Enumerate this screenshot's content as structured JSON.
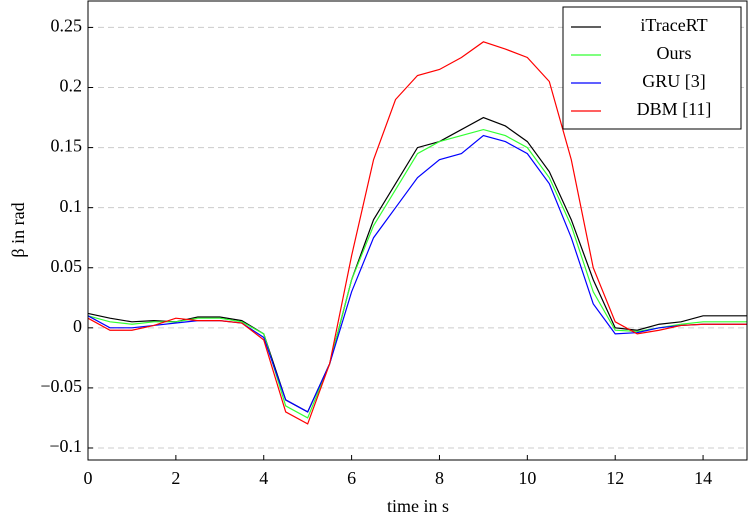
{
  "chart_data": {
    "type": "line",
    "xlabel": "time in s",
    "ylabel": "β in rad",
    "x": [
      0,
      0.5,
      1,
      1.5,
      2,
      2.5,
      3,
      3.5,
      4,
      4.5,
      5,
      5.5,
      6,
      6.5,
      7,
      7.5,
      8,
      8.5,
      9,
      9.5,
      10,
      10.5,
      11,
      11.5,
      12,
      12.5,
      13,
      13.5,
      14,
      14.5,
      15
    ],
    "series": [
      {
        "name": "iTraceRT",
        "color": "#000000",
        "values": [
          0.012,
          0.008,
          0.005,
          0.006,
          0.005,
          0.009,
          0.009,
          0.006,
          -0.005,
          -0.06,
          -0.07,
          -0.03,
          0.04,
          0.09,
          0.12,
          0.15,
          0.155,
          0.165,
          0.175,
          0.168,
          0.155,
          0.13,
          0.09,
          0.04,
          0.0,
          -0.002,
          0.003,
          0.005,
          0.01,
          0.01,
          0.01
        ]
      },
      {
        "name": "Ours",
        "color": "#33ff33",
        "values": [
          0.01,
          0.005,
          0.003,
          0.005,
          0.005,
          0.008,
          0.008,
          0.005,
          -0.005,
          -0.065,
          -0.075,
          -0.03,
          0.04,
          0.085,
          0.115,
          0.145,
          0.155,
          0.16,
          0.165,
          0.16,
          0.15,
          0.125,
          0.085,
          0.03,
          -0.002,
          -0.003,
          0.0,
          0.003,
          0.005,
          0.005,
          0.005
        ]
      },
      {
        "name": "GRU [3]",
        "color": "#0000ff",
        "values": [
          0.01,
          0.0,
          0.0,
          0.002,
          0.004,
          0.006,
          0.006,
          0.004,
          -0.008,
          -0.06,
          -0.07,
          -0.03,
          0.03,
          0.075,
          0.1,
          0.125,
          0.14,
          0.145,
          0.16,
          0.155,
          0.145,
          0.12,
          0.075,
          0.02,
          -0.005,
          -0.004,
          0.0,
          0.002,
          0.003,
          0.003,
          0.003
        ]
      },
      {
        "name": "DBM [11]",
        "color": "#ff0000",
        "values": [
          0.008,
          -0.002,
          -0.002,
          0.002,
          0.008,
          0.006,
          0.006,
          0.004,
          -0.01,
          -0.07,
          -0.08,
          -0.03,
          0.06,
          0.14,
          0.19,
          0.21,
          0.215,
          0.225,
          0.238,
          0.232,
          0.225,
          0.205,
          0.14,
          0.05,
          0.005,
          -0.005,
          -0.002,
          0.002,
          0.003,
          0.003,
          0.003
        ]
      }
    ],
    "xlim": [
      0,
      15
    ],
    "ylim": [
      -0.11,
      0.272
    ],
    "xticks": [
      0,
      2,
      4,
      6,
      8,
      10,
      12,
      14
    ],
    "yticks": [
      {
        "value": -0.1,
        "label": "−0.1"
      },
      {
        "value": -0.05,
        "label": "−0.05"
      },
      0,
      0.05,
      0.1,
      0.15,
      0.2,
      0.25
    ],
    "grid": true,
    "legend": "north-east"
  }
}
